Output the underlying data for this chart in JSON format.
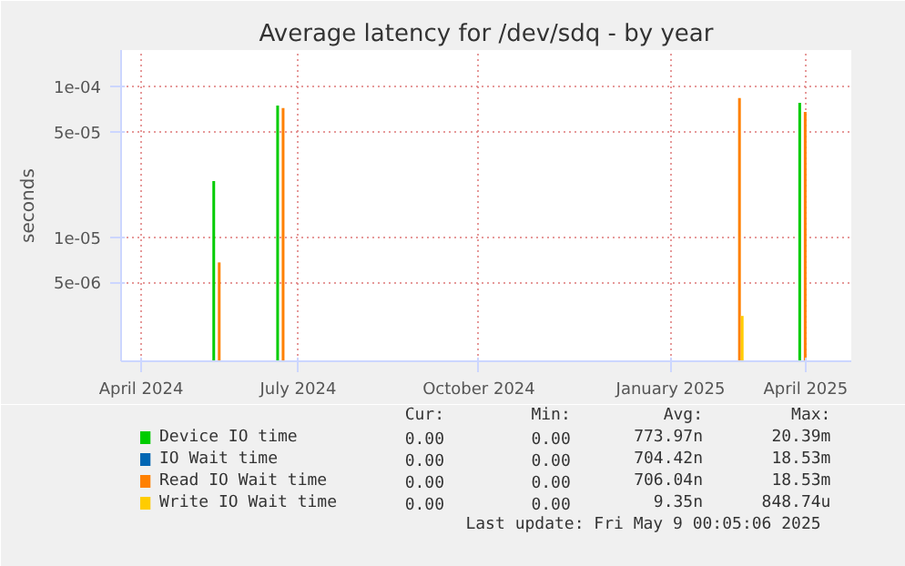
{
  "chart_data": {
    "type": "bar",
    "title": "Average latency for /dev/sdq - by year",
    "ylabel": "seconds",
    "x": [
      "2024-05-27",
      "2024-07-01",
      "2025-03-08",
      "2025-04-13"
    ],
    "series": [
      {
        "name": "Device IO time",
        "color": "#00cc00",
        "values": [
          2.36e-05,
          7.5e-05,
          null,
          7.8e-05
        ]
      },
      {
        "name": "IO Wait time",
        "color": "#0066b3",
        "values": [
          null,
          null,
          null,
          null
        ]
      },
      {
        "name": "Read IO Wait time",
        "color": "#ff8000",
        "values": [
          6.8e-06,
          7.2e-05,
          8.4e-05,
          6.8e-05
        ]
      },
      {
        "name": "Write IO Wait time",
        "color": "#ffcc00",
        "values": [
          null,
          null,
          3e-06,
          null
        ]
      }
    ],
    "log": "y",
    "ylim": [
      1.5e-06,
      0.000175
    ],
    "yticks": [
      {
        "value": 5e-06,
        "label": "5e-06"
      },
      {
        "value": 1e-05,
        "label": "1e-05"
      },
      {
        "value": 5e-05,
        "label": "5e-05"
      },
      {
        "value": 0.0001,
        "label": "1e-04"
      }
    ],
    "xlim": [
      "2024-04-04",
      "2025-05-09"
    ],
    "xticks": [
      {
        "value": "2024-04-15",
        "label": "April 2024"
      },
      {
        "value": "2024-07-10",
        "label": "July 2024"
      },
      {
        "value": "2024-10-17",
        "label": "October 2024"
      },
      {
        "value": "2025-01-30",
        "label": "January 2025"
      },
      {
        "value": "2025-04-14",
        "label": "April 2025"
      }
    ],
    "grid": true,
    "legend": "bottom",
    "annotations": [
      "Cur:",
      "Min:",
      "Avg:",
      "Max:",
      "0.00",
      "0.00",
      "773.97n",
      "20.39m",
      "0.00",
      "0.00",
      "704.42n",
      "18.53m",
      "0.00",
      "0.00",
      "706.04n",
      "18.53m",
      "0.00",
      "0.00",
      "9.35n",
      "848.74u",
      "Last update: Fri May  9 00:05:06 2025"
    ]
  }
}
